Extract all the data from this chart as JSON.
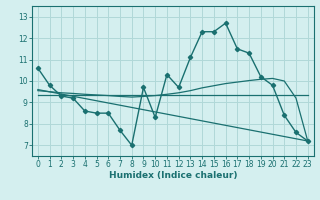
{
  "xlabel": "Humidex (Indice chaleur)",
  "background_color": "#d4efef",
  "grid_color": "#b0d8d8",
  "line_color": "#1a7070",
  "xlim": [
    -0.5,
    23.5
  ],
  "ylim": [
    6.5,
    13.5
  ],
  "xticks": [
    0,
    1,
    2,
    3,
    4,
    5,
    6,
    7,
    8,
    9,
    10,
    11,
    12,
    13,
    14,
    15,
    16,
    17,
    18,
    19,
    20,
    21,
    22,
    23
  ],
  "yticks": [
    7,
    8,
    9,
    10,
    11,
    12,
    13
  ],
  "main_line": {
    "x": [
      0,
      1,
      2,
      3,
      4,
      5,
      6,
      7,
      8,
      9,
      10,
      11,
      12,
      13,
      14,
      15,
      16,
      17,
      18,
      19,
      20,
      21,
      22,
      23
    ],
    "y": [
      10.6,
      9.8,
      9.3,
      9.2,
      8.6,
      8.5,
      8.5,
      7.7,
      7.0,
      9.7,
      8.3,
      10.3,
      9.7,
      11.1,
      12.3,
      12.3,
      12.7,
      11.5,
      11.3,
      10.2,
      9.8,
      8.4,
      7.6,
      7.2
    ]
  },
  "diagonal_line": {
    "x": [
      0,
      23
    ],
    "y": [
      9.6,
      7.2
    ]
  },
  "flat_line": {
    "x": [
      0,
      23
    ],
    "y": [
      9.35,
      9.35
    ]
  },
  "smooth_upper": {
    "x": [
      0,
      1,
      2,
      3,
      4,
      5,
      6,
      7,
      8,
      9,
      10,
      11,
      12,
      13,
      14,
      15,
      16,
      17,
      18,
      19,
      20,
      21,
      22,
      23
    ],
    "y": [
      9.55,
      9.5,
      9.45,
      9.42,
      9.38,
      9.35,
      9.32,
      9.28,
      9.25,
      9.28,
      9.32,
      9.38,
      9.45,
      9.55,
      9.68,
      9.78,
      9.88,
      9.95,
      10.02,
      10.08,
      10.12,
      10.0,
      9.2,
      7.2
    ]
  }
}
